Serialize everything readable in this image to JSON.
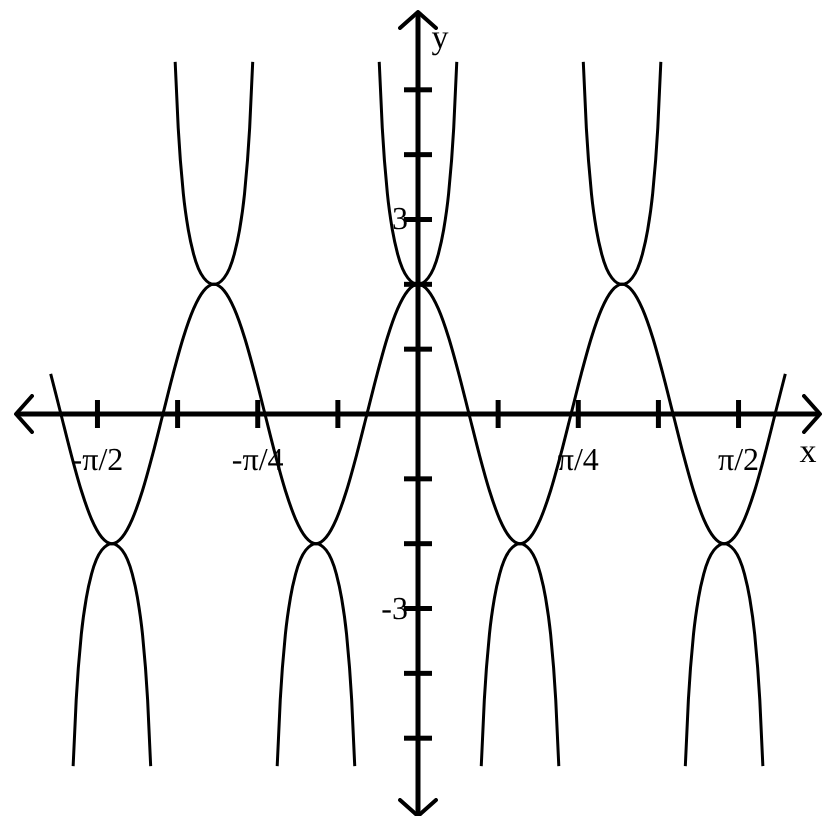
{
  "chart_data": {
    "type": "line",
    "xlabel": "x",
    "ylabel": "y",
    "xlim": [
      -1.97,
      1.97
    ],
    "ylim": [
      -6.2,
      6.2
    ],
    "xticks": [
      {
        "value": -1.5708,
        "label": "-π/2"
      },
      {
        "value": -1.1781,
        "label": null
      },
      {
        "value": -0.7854,
        "label": "-π/4"
      },
      {
        "value": -0.3927,
        "label": null
      },
      {
        "value": 0.3927,
        "label": null
      },
      {
        "value": 0.7854,
        "label": "π/4"
      },
      {
        "value": 1.1781,
        "label": null
      },
      {
        "value": 1.5708,
        "label": "π/2"
      }
    ],
    "yticks": [
      {
        "value": -5,
        "label": null
      },
      {
        "value": -4,
        "label": null
      },
      {
        "value": -3,
        "label": "-3"
      },
      {
        "value": -2,
        "label": null
      },
      {
        "value": -1,
        "label": null
      },
      {
        "value": 1,
        "label": null
      },
      {
        "value": 2,
        "label": null
      },
      {
        "value": 3,
        "label": "3"
      },
      {
        "value": 4,
        "label": null
      },
      {
        "value": 5,
        "label": null
      }
    ],
    "series": [
      {
        "color": "#000000",
        "x": [
          -1.8,
          -1.75,
          -1.7,
          -1.65,
          -1.6,
          -1.55,
          -1.5,
          -1.45,
          -1.4,
          -1.35,
          -1.3,
          -1.25,
          -1.2,
          -1.15,
          -1.1,
          -1.05,
          -1,
          -0.95,
          -0.9,
          -0.85,
          -0.8,
          -0.75,
          -0.7,
          -0.65,
          -0.6,
          -0.55,
          -0.5,
          -0.45,
          -0.4,
          -0.35,
          -0.3,
          -0.25,
          -0.2,
          -0.15,
          -0.1,
          -0.05,
          0,
          0.05,
          0.1,
          0.15,
          0.2,
          0.25,
          0.3,
          0.35,
          0.4,
          0.45,
          0.5,
          0.55,
          0.6,
          0.65,
          0.7,
          0.75,
          0.8,
          0.85,
          0.9,
          0.95,
          1,
          1.05,
          1.1,
          1.15,
          1.2,
          1.25,
          1.3,
          1.35,
          1.4,
          1.45,
          1.5,
          1.55,
          1.6,
          1.65,
          1.7,
          1.75,
          1.8
        ],
        "values": [
          0.62,
          0,
          -0.62,
          -1.18,
          -1.62,
          -1.9,
          -2,
          -1.9,
          -1.62,
          -1.18,
          -0.62,
          0,
          0.62,
          1.18,
          1.62,
          1.9,
          2,
          1.9,
          1.62,
          1.18,
          0.62,
          0,
          -0.62,
          -1.18,
          -1.62,
          -1.9,
          -2,
          -1.9,
          -1.62,
          -1.18,
          -0.62,
          0,
          0.62,
          1.18,
          1.62,
          1.9,
          2,
          1.9,
          1.62,
          1.18,
          0.62,
          0,
          -0.62,
          -1.18,
          -1.62,
          -1.9,
          -2,
          -1.9,
          -1.62,
          -1.18,
          -0.62,
          0,
          0.62,
          1.18,
          1.62,
          1.9,
          2,
          1.9,
          1.62,
          1.18,
          0.62,
          0,
          -0.62,
          -1.18,
          -1.62,
          -1.9,
          -2,
          -1.9,
          -1.62,
          -1.18,
          -0.62,
          0,
          0.62
        ]
      },
      {
        "color": "#000000",
        "x": [
          -1.69,
          -1.675,
          -1.65,
          -1.625,
          -1.6,
          -1.55,
          -1.5,
          -1.45,
          -1.4,
          -1.375,
          -1.35,
          -1.325,
          -1.31,
          -1.25,
          -1.19,
          -1.175,
          -1.15,
          -1.125,
          -1.1,
          -1.05,
          -1,
          -0.95,
          -0.9,
          -0.875,
          -0.85,
          -0.825,
          -0.81,
          -0.75,
          -0.69,
          -0.675,
          -0.65,
          -0.625,
          -0.6,
          -0.55,
          -0.5,
          -0.45,
          -0.4,
          -0.375,
          -0.35,
          -0.325,
          -0.31,
          -0.25,
          -0.19,
          -0.175,
          -0.15,
          -0.125,
          -0.1,
          -0.05,
          0,
          0.05,
          0.1,
          0.125,
          0.15,
          0.175,
          0.19,
          0.25,
          0.31,
          0.325,
          0.35,
          0.375,
          0.4,
          0.45,
          0.5,
          0.55,
          0.6,
          0.625,
          0.65,
          0.675,
          0.69,
          0.75,
          0.81,
          0.825,
          0.85,
          0.875,
          0.9,
          0.95,
          1,
          1.05,
          1.1,
          1.125,
          1.15,
          1.175,
          1.19,
          1.25,
          1.31,
          1.325,
          1.35,
          1.375,
          1.4,
          1.45,
          1.5,
          1.55,
          1.6,
          1.625,
          1.65,
          1.675,
          1.69
        ],
        "values": [
          -5.43,
          -4.41,
          -3.4,
          -2.83,
          -2.47,
          -2.1,
          -2,
          -2.1,
          -2.47,
          -2.83,
          -3.4,
          -4.41,
          -5.43,
          null,
          5.43,
          4.41,
          3.4,
          2.83,
          2.47,
          2.1,
          2,
          2.1,
          2.47,
          2.83,
          3.4,
          4.41,
          5.43,
          null,
          -5.43,
          -4.41,
          -3.4,
          -2.83,
          -2.47,
          -2.1,
          -2,
          -2.1,
          -2.47,
          -2.83,
          -3.4,
          -4.41,
          -5.43,
          null,
          5.43,
          4.41,
          3.4,
          2.83,
          2.47,
          2.1,
          2,
          2.1,
          2.47,
          2.83,
          3.4,
          4.41,
          5.43,
          null,
          -5.43,
          -4.41,
          -3.4,
          -2.83,
          -2.47,
          -2.1,
          -2,
          -2.1,
          -2.47,
          -2.83,
          -3.4,
          -4.41,
          -5.43,
          null,
          5.43,
          4.41,
          3.4,
          2.83,
          2.47,
          2.1,
          2,
          2.1,
          2.47,
          2.83,
          3.4,
          4.41,
          5.43,
          null,
          -5.43,
          -4.41,
          -3.4,
          -2.83,
          -2.47,
          -2.1,
          -2,
          -2.1,
          -2.47,
          -2.83,
          -3.4,
          -4.41,
          -5.43
        ]
      }
    ]
  }
}
